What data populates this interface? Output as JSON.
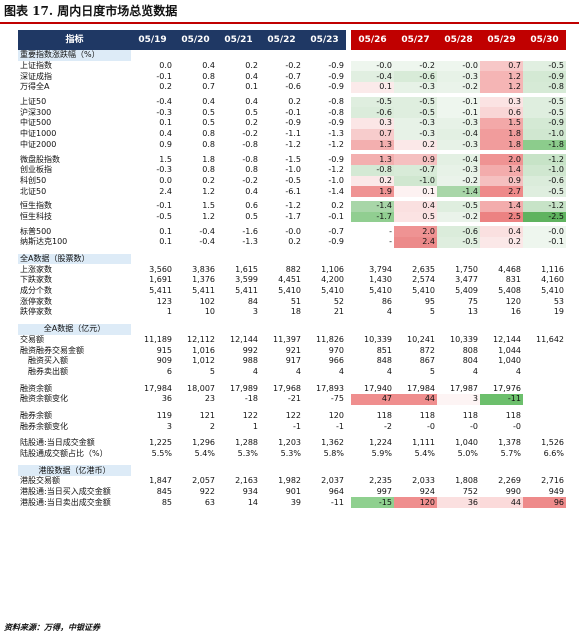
{
  "title": "图表 17. 周内日度市场总览数据",
  "source": "资料来源：万得，中银证券",
  "header": {
    "label": "指标",
    "dates": [
      "05/19",
      "05/20",
      "05/21",
      "05/22",
      "05/23",
      "05/26",
      "05/27",
      "05/28",
      "05/29",
      "05/30"
    ]
  },
  "rows": [
    {
      "t": "sec",
      "label": "重要指数涨跌幅（%）"
    },
    {
      "t": "d",
      "label": "上证指数",
      "v": [
        "0.0",
        "0.4",
        "0.2",
        "-0.2",
        "-0.9",
        "-0.0",
        "-0.2",
        "-0.0",
        "0.7",
        "-0.5"
      ],
      "c": [
        0,
        0,
        0,
        0,
        0,
        "#eef6ee",
        "#eef6ee",
        "#eef6ee",
        "#f7c7c7",
        "#e1efe1"
      ]
    },
    {
      "t": "d",
      "label": "深证成指",
      "v": [
        "-0.1",
        "0.8",
        "0.4",
        "-0.7",
        "-0.9",
        "-0.4",
        "-0.6",
        "-0.3",
        "1.2",
        "-0.9"
      ],
      "c": [
        0,
        0,
        0,
        0,
        0,
        "#e1efe1",
        "#d8ebd8",
        "#e7f2e7",
        "#f5b5b5",
        "#d4e9d4"
      ]
    },
    {
      "t": "d",
      "label": "万得全A",
      "v": [
        "0.2",
        "0.7",
        "0.1",
        "-0.6",
        "-0.9",
        "0.1",
        "-0.3",
        "-0.2",
        "1.2",
        "-0.8"
      ],
      "c": [
        0,
        0,
        0,
        0,
        0,
        "#fbeaea",
        "#e7f2e7",
        "#eaf3ea",
        "#f5b5b5",
        "#d6eAd6"
      ]
    },
    {
      "t": "thin"
    },
    {
      "t": "d",
      "label": "上证50",
      "v": [
        "-0.4",
        "0.4",
        "0.4",
        "0.2",
        "-0.8",
        "-0.5",
        "-0.5",
        "-0.1",
        "0.3",
        "-0.5"
      ],
      "c": [
        0,
        0,
        0,
        0,
        0,
        "#dfeedf",
        "#dfeedf",
        "#eef6ee",
        "#fbe3e3",
        "#dfeedf"
      ]
    },
    {
      "t": "d",
      "label": "沪深300",
      "v": [
        "-0.3",
        "0.5",
        "0.5",
        "-0.1",
        "-0.8",
        "-0.6",
        "-0.5",
        "-0.1",
        "0.6",
        "-0.5"
      ],
      "c": [
        0,
        0,
        0,
        0,
        0,
        "#dbecdb",
        "#dfeedf",
        "#eef6ee",
        "#f9d6d6",
        "#dfeedf"
      ]
    },
    {
      "t": "d",
      "label": "中证500",
      "v": [
        "0.1",
        "0.5",
        "0.2",
        "-0.9",
        "-0.9",
        "0.3",
        "-0.3",
        "-0.3",
        "1.5",
        "-0.9"
      ],
      "c": [
        0,
        0,
        0,
        0,
        0,
        "#fbe6e6",
        "#e7f2e7",
        "#e7f2e7",
        "#f3a8a8",
        "#d4e9d4"
      ]
    },
    {
      "t": "d",
      "label": "中证1000",
      "v": [
        "0.4",
        "0.8",
        "-0.2",
        "-1.1",
        "-1.3",
        "0.7",
        "-0.3",
        "-0.4",
        "1.8",
        "-1.0"
      ],
      "c": [
        0,
        0,
        0,
        0,
        0,
        "#f7cccc",
        "#e7f2e7",
        "#e3f0e3",
        "#f19c9c",
        "#d0e7d0"
      ]
    },
    {
      "t": "d",
      "label": "中证2000",
      "v": [
        "0.9",
        "0.8",
        "-0.8",
        "-1.2",
        "-1.2",
        "1.3",
        "0.2",
        "-0.3",
        "1.8",
        "-1.8"
      ],
      "c": [
        0,
        0,
        0,
        0,
        0,
        "#f3afaf",
        "#fbe8e8",
        "#e7f2e7",
        "#f19c9c",
        "#8ccc8c"
      ]
    },
    {
      "t": "thin"
    },
    {
      "t": "d",
      "label": "微盘股指数",
      "v": [
        "1.5",
        "1.8",
        "-0.8",
        "-1.5",
        "-0.9",
        "1.3",
        "0.9",
        "-0.4",
        "2.0",
        "-1.2"
      ],
      "c": [
        0,
        0,
        0,
        0,
        0,
        "#f3afaf",
        "#f5c0c0",
        "#e3f0e3",
        "#ef9393",
        "#c7e3c7"
      ]
    },
    {
      "t": "d",
      "label": "创业板指",
      "v": [
        "-0.3",
        "0.8",
        "0.8",
        "-1.0",
        "-1.2",
        "-0.8",
        "-0.7",
        "-0.3",
        "1.4",
        "-1.0"
      ],
      "c": [
        0,
        0,
        0,
        0,
        0,
        "#d4e9d4",
        "#d8ebd8",
        "#e7f2e7",
        "#f3acac",
        "#d0e7d0"
      ]
    },
    {
      "t": "d",
      "label": "科创50",
      "v": [
        "0.0",
        "0.2",
        "-0.2",
        "-0.5",
        "-1.0",
        "0.2",
        "-1.0",
        "-0.2",
        "0.9",
        "-0.6"
      ],
      "c": [
        0,
        0,
        0,
        0,
        0,
        "#fbe8e8",
        "#d0e7d0",
        "#eaf3ea",
        "#f5c0c0",
        "#dbecdb"
      ]
    },
    {
      "t": "d",
      "label": "北证50",
      "v": [
        "2.4",
        "1.2",
        "0.4",
        "-6.1",
        "-1.4",
        "1.9",
        "0.1",
        "-1.4",
        "2.7",
        "-0.5"
      ],
      "c": [
        0,
        0,
        0,
        0,
        0,
        "#ef9393",
        "#fdf2f2",
        "#a8d6a8",
        "#ee8a8a",
        "#dfeedf"
      ]
    },
    {
      "t": "thin"
    },
    {
      "t": "d",
      "label": "恒生指数",
      "v": [
        "-0.1",
        "1.5",
        "0.6",
        "-1.2",
        "0.2",
        "-1.4",
        "0.4",
        "-0.5",
        "1.4",
        "-1.2"
      ],
      "c": [
        0,
        0,
        0,
        0,
        0,
        "#a8d6a8",
        "#fae0e0",
        "#dfeedf",
        "#f3acac",
        "#c7e3c7"
      ]
    },
    {
      "t": "d",
      "label": "恒生科技",
      "v": [
        "-0.5",
        "1.2",
        "0.5",
        "-1.7",
        "-0.1",
        "-1.7",
        "0.5",
        "-0.2",
        "2.5",
        "-2.5"
      ],
      "c": [
        0,
        0,
        0,
        0,
        0,
        "#91ce91",
        "#fbe3e3",
        "#eaf3ea",
        "#ec8282",
        "#5fb35f"
      ]
    },
    {
      "t": "thin"
    },
    {
      "t": "d",
      "label": "标普500",
      "v": [
        "0.1",
        "-0.4",
        "-1.6",
        "-0.0",
        "-0.7",
        "-",
        "2.0",
        "-0.6",
        "0.4",
        "-0.0"
      ],
      "c": [
        0,
        0,
        0,
        0,
        0,
        0,
        "#ef9393",
        "#dbecdb",
        "#fae0e0",
        "#eef6ee"
      ]
    },
    {
      "t": "d",
      "label": "纳斯达克100",
      "v": [
        "0.1",
        "-0.4",
        "-1.3",
        "0.2",
        "-0.9",
        "-",
        "2.4",
        "-0.5",
        "0.2",
        "-0.1"
      ],
      "c": [
        0,
        0,
        0,
        0,
        0,
        0,
        "#ec8a8a",
        "#dfeedf",
        "#fbe8e8",
        "#eef6ee"
      ]
    },
    {
      "t": "blank"
    },
    {
      "t": "sec",
      "label": "全A数据（股票数）"
    },
    {
      "t": "d",
      "label": "上涨家数",
      "v": [
        "3,560",
        "3,836",
        "1,615",
        "882",
        "1,106",
        "3,794",
        "2,635",
        "1,750",
        "4,468",
        "1,116"
      ]
    },
    {
      "t": "d",
      "label": "下跌家数",
      "v": [
        "1,691",
        "1,376",
        "3,599",
        "4,451",
        "4,200",
        "1,430",
        "2,574",
        "3,477",
        "831",
        "4,160"
      ]
    },
    {
      "t": "d",
      "label": "成分个数",
      "v": [
        "5,411",
        "5,411",
        "5,411",
        "5,410",
        "5,410",
        "5,410",
        "5,410",
        "5,409",
        "5,408",
        "5,410"
      ]
    },
    {
      "t": "d",
      "label": "涨停家数",
      "v": [
        "123",
        "102",
        "84",
        "51",
        "52",
        "86",
        "95",
        "75",
        "120",
        "53"
      ]
    },
    {
      "t": "d",
      "label": "跌停家数",
      "v": [
        "1",
        "10",
        "3",
        "18",
        "21",
        "4",
        "5",
        "13",
        "16",
        "19"
      ]
    },
    {
      "t": "blank"
    },
    {
      "t": "sec",
      "label": "全A数据（亿元）",
      "center": true
    },
    {
      "t": "d",
      "label": "交易额",
      "v": [
        "11,189",
        "12,112",
        "12,144",
        "11,397",
        "11,826",
        "10,339",
        "10,241",
        "10,339",
        "12,144",
        "11,642"
      ]
    },
    {
      "t": "d",
      "label": "融资融券交易金额",
      "v": [
        "915",
        "1,016",
        "992",
        "921",
        "970",
        "851",
        "872",
        "808",
        "1,044",
        ""
      ]
    },
    {
      "t": "d",
      "label": "融资买入额",
      "indent": true,
      "v": [
        "909",
        "1,012",
        "988",
        "917",
        "966",
        "848",
        "867",
        "804",
        "1,040",
        ""
      ]
    },
    {
      "t": "d",
      "label": "融券卖出额",
      "indent": true,
      "v": [
        "6",
        "5",
        "4",
        "4",
        "4",
        "4",
        "5",
        "4",
        "4",
        ""
      ]
    },
    {
      "t": "blank"
    },
    {
      "t": "d",
      "label": "融资余额",
      "v": [
        "17,984",
        "18,007",
        "17,989",
        "17,968",
        "17,893",
        "17,940",
        "17,984",
        "17,987",
        "17,976",
        ""
      ]
    },
    {
      "t": "d",
      "label": "融资余额变化",
      "v": [
        "36",
        "23",
        "-18",
        "-21",
        "-75",
        "47",
        "44",
        "3",
        "-11",
        ""
      ],
      "c": [
        0,
        0,
        0,
        0,
        0,
        "#ef8e8e",
        "#ef8e8e",
        "#fdf4f4",
        "#6cbf6c",
        0
      ]
    },
    {
      "t": "blank"
    },
    {
      "t": "d",
      "label": "融券余额",
      "v": [
        "119",
        "121",
        "122",
        "122",
        "120",
        "118",
        "118",
        "118",
        "118",
        ""
      ]
    },
    {
      "t": "d",
      "label": "融券余额变化",
      "v": [
        "3",
        "2",
        "1",
        "-1",
        "-1",
        "-2",
        "-0",
        "-0",
        "-0",
        ""
      ]
    },
    {
      "t": "blank"
    },
    {
      "t": "d",
      "label": "陆股通:当日成交金额",
      "v": [
        "1,225",
        "1,296",
        "1,288",
        "1,203",
        "1,362",
        "1,224",
        "1,111",
        "1,040",
        "1,378",
        "1,526"
      ]
    },
    {
      "t": "d",
      "label": "陆股通成交额占比（%）",
      "v": [
        "5.5%",
        "5.4%",
        "5.3%",
        "5.3%",
        "5.8%",
        "5.9%",
        "5.4%",
        "5.0%",
        "5.7%",
        "6.6%"
      ]
    },
    {
      "t": "blank"
    },
    {
      "t": "sec",
      "label": "港股数据（亿港币）",
      "center": true
    },
    {
      "t": "d",
      "label": "港股交易额",
      "v": [
        "1,847",
        "2,057",
        "2,163",
        "1,982",
        "2,037",
        "2,235",
        "2,033",
        "1,808",
        "2,269",
        "2,716"
      ]
    },
    {
      "t": "d",
      "label": "港股通:当日买入成交金额",
      "v": [
        "845",
        "922",
        "934",
        "901",
        "964",
        "997",
        "924",
        "752",
        "990",
        "949"
      ]
    },
    {
      "t": "d",
      "label": "港股通:当日卖出成交金额",
      "v": [
        "85",
        "63",
        "14",
        "39",
        "-11",
        "-15",
        "120",
        "36",
        "44",
        "96"
      ],
      "c": [
        0,
        0,
        0,
        0,
        0,
        "#8fd08f",
        "#ef8e8e",
        "#fbe0e0",
        "#fbdada",
        "#ee8a8a"
      ]
    }
  ]
}
